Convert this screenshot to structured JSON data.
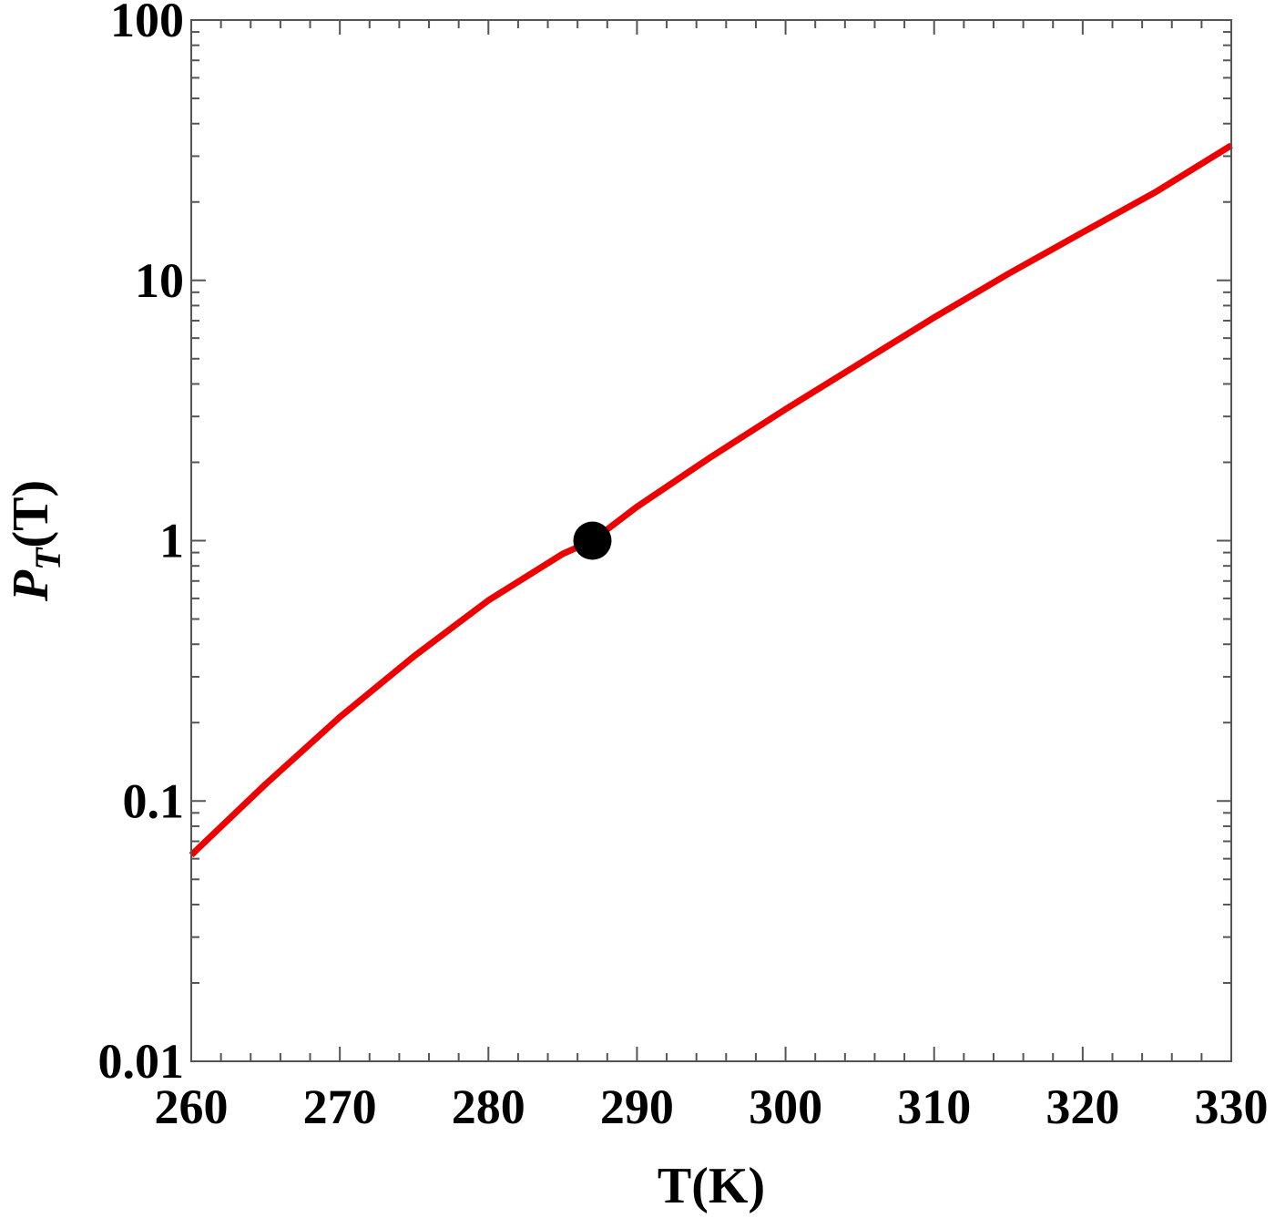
{
  "chart_data": {
    "type": "line",
    "title": "",
    "xlabel": "T(K)",
    "ylabel_main": "P",
    "ylabel_sub": "T",
    "ylabel_tail": "(T)",
    "xlim": [
      260,
      330
    ],
    "ylim": [
      0.01,
      100
    ],
    "y_scale": "log",
    "grid": false,
    "x_ticks": [
      {
        "value": 260,
        "label": "260"
      },
      {
        "value": 270,
        "label": "270"
      },
      {
        "value": 280,
        "label": "280"
      },
      {
        "value": 290,
        "label": "290"
      },
      {
        "value": 300,
        "label": "300"
      },
      {
        "value": 310,
        "label": "310"
      },
      {
        "value": 320,
        "label": "320"
      },
      {
        "value": 330,
        "label": "330"
      }
    ],
    "y_ticks": [
      {
        "value": 0.01,
        "label": "0.01"
      },
      {
        "value": 0.1,
        "label": "0.1"
      },
      {
        "value": 1,
        "label": "1"
      },
      {
        "value": 10,
        "label": "10"
      },
      {
        "value": 100,
        "label": "100"
      }
    ],
    "series": [
      {
        "color": "#ee0000",
        "x": [
          260,
          265,
          270,
          275,
          280,
          285,
          287,
          290,
          295,
          300,
          305,
          310,
          315,
          320,
          325,
          330
        ],
        "y": [
          0.062,
          0.116,
          0.21,
          0.36,
          0.59,
          0.89,
          1.0,
          1.35,
          2.1,
          3.2,
          4.8,
          7.2,
          10.6,
          15.3,
          22.0,
          33.0
        ]
      }
    ],
    "markers": [
      {
        "x": 287,
        "y": 1,
        "color": "#000000"
      }
    ]
  }
}
